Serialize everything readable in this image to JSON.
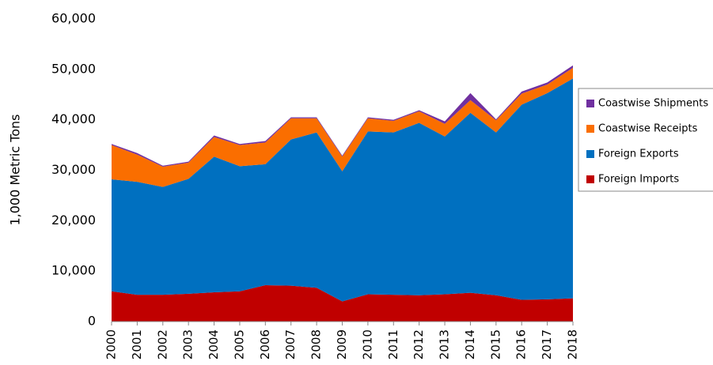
{
  "chart_data": {
    "type": "stacked-area",
    "y_label": "1,000 Metric Tons",
    "categories": [
      "2000",
      "2001",
      "2002",
      "2003",
      "2004",
      "2005",
      "2006",
      "2007",
      "2008",
      "2009",
      "2010",
      "2011",
      "2012",
      "2013",
      "2014",
      "2015",
      "2016",
      "2017",
      "2018"
    ],
    "series": [
      {
        "name": "Foreign Imports",
        "color": "#c00000",
        "values": [
          6000,
          5300,
          5300,
          5500,
          5800,
          6000,
          7200,
          7100,
          6700,
          4000,
          5400,
          5300,
          5200,
          5400,
          5700,
          5200,
          4300,
          4400,
          4600
        ]
      },
      {
        "name": "Foreign Exports",
        "color": "#0070c0",
        "values": [
          22200,
          22400,
          21400,
          22800,
          26900,
          24800,
          24000,
          29000,
          30800,
          25800,
          32300,
          32200,
          34200,
          31300,
          35700,
          32300,
          38700,
          40900,
          43600
        ]
      },
      {
        "name": "Coastwise Receipts",
        "color": "#fa6e00",
        "values": [
          6800,
          5400,
          4000,
          3200,
          3900,
          4200,
          4300,
          4200,
          2800,
          2900,
          2600,
          2300,
          2300,
          2500,
          2500,
          2400,
          2200,
          1700,
          2100
        ]
      },
      {
        "name": "Coastwise Shipments",
        "color": "#7030a0",
        "values": [
          200,
          300,
          200,
          200,
          300,
          200,
          300,
          200,
          200,
          200,
          200,
          200,
          200,
          500,
          1400,
          200,
          400,
          400,
          500
        ]
      }
    ],
    "ylim": [
      0,
      60000
    ],
    "yticks": [
      0,
      {
        "value": 10000,
        "label": "10,000"
      },
      {
        "value": 20000,
        "label": "20,000"
      },
      {
        "value": 30000,
        "label": "30,000"
      },
      {
        "value": 40000,
        "label": "40,000"
      },
      {
        "value": 50000,
        "label": "50,000"
      },
      {
        "value": 60000,
        "label": "60,000"
      }
    ],
    "legend": "right"
  }
}
